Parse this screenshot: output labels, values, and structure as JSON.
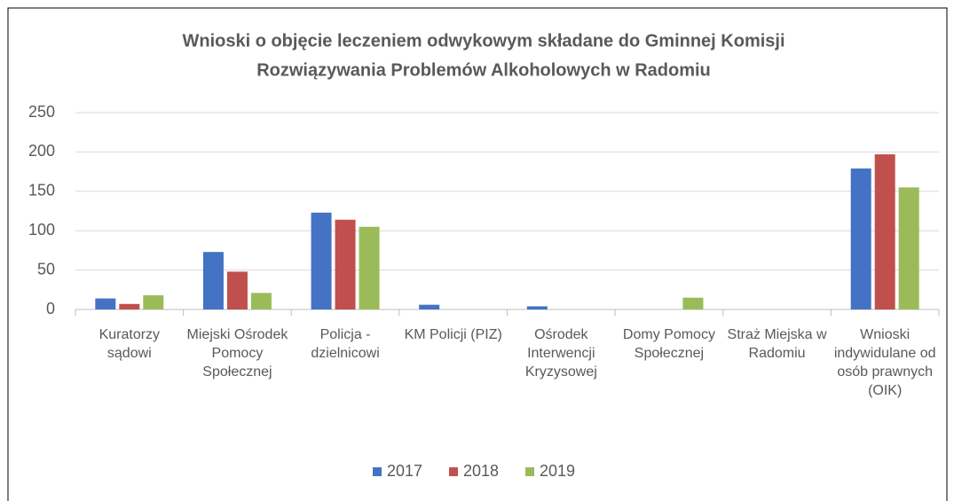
{
  "chart_data": {
    "type": "bar",
    "title": [
      "Wnioski o objęcie leczeniem odwykowym składane do Gminnej Komisji",
      "Rozwiązywania Problemów Alkoholowych w Radomiu"
    ],
    "categories": [
      "Kuratorzy sądowi",
      "Miejski Ośrodek Pomocy Społecznej",
      "Policja - dzielnicowi",
      "KM Policji (PIZ)",
      "Ośrodek Interwencji Kryzysowej",
      "Domy Pomocy Społecznej",
      "Straż Miejska w Radomiu",
      "Wnioski indywidulane od osób prawnych (OIK)"
    ],
    "series": [
      {
        "name": "2017",
        "color": "#4472c4",
        "values": [
          14,
          73,
          123,
          6,
          4,
          0,
          0,
          179
        ]
      },
      {
        "name": "2018",
        "color": "#c0504d",
        "values": [
          7,
          48,
          114,
          0,
          0,
          0,
          0,
          197
        ]
      },
      {
        "name": "2019",
        "color": "#9bbb59",
        "values": [
          18,
          21,
          105,
          0,
          0,
          15,
          0,
          155
        ]
      }
    ],
    "ylim": [
      0,
      250
    ],
    "yticks": [
      0,
      50,
      100,
      150,
      200,
      250
    ],
    "grid": true,
    "legend": "bottom"
  }
}
